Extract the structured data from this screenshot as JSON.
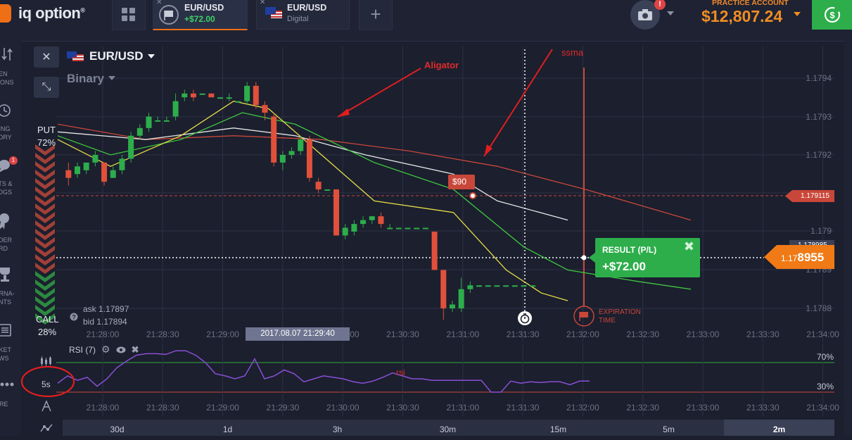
{
  "header": {
    "logo_text": "iq option",
    "logo_reg": "®",
    "tabs": [
      {
        "name": "EUR/USD",
        "sub": "+$72.00",
        "sub_color": "#3fd166"
      },
      {
        "name": "EUR/USD",
        "sub": "Digital",
        "sub_color": "#8b91a3"
      }
    ],
    "add_tab": "+",
    "camera_badge": "!",
    "account_label": "PRACTICE ACCOUNT",
    "balance": "$12,807.24"
  },
  "sidebar": [
    {
      "icon": "open-options-icon",
      "label1": "PEN",
      "label2": "TIONS"
    },
    {
      "icon": "trading-history-icon",
      "label1": "DING",
      "label2": "TORY"
    },
    {
      "icon": "chats-icon",
      "label1": "ATS &",
      "label2": "LOGS",
      "badge": "1"
    },
    {
      "icon": "leader-board-icon",
      "label1": "ADER",
      "label2": "ARD"
    },
    {
      "icon": "tournaments-icon",
      "label1": "URNA-",
      "label2": "ENTS"
    },
    {
      "icon": "market-news-icon",
      "label1": "RKET",
      "label2": "EWS"
    },
    {
      "icon": "more-icon",
      "label1": "ORE",
      "label2": ""
    }
  ],
  "chart_header": {
    "pair": "EUR/USD",
    "type": "Binary",
    "close": "✕",
    "expand": "⤡"
  },
  "indicator": {
    "put_label": "PUT",
    "put_pct": "72%",
    "call_label": "CALL",
    "call_pct": "28%"
  },
  "quote": {
    "ask": "ask 1.17897",
    "bid": "bid 1.17894"
  },
  "trade": {
    "investment": "$90",
    "result_label": "RESULT (P/L)",
    "result_value": "+$72.00",
    "strike_tag": "1.179115",
    "current_small": "1.178985",
    "current_big_a": "1.17",
    "current_big_b": "8955",
    "expiration_label_1": "EXPIRATION",
    "expiration_label_2": "TIME"
  },
  "time_tooltip": "2017.08.07 21:29:40",
  "annotations": {
    "aligator": "Aligator",
    "ssma": "ssma",
    "rsi": "rsi"
  },
  "rsi_panel": {
    "title": "RSI (7)",
    "level_70": "70%",
    "level_30": "30%",
    "chart_interval": "5s"
  },
  "timeframes": [
    "30d",
    "1d",
    "3h",
    "30m",
    "15m",
    "5m",
    "2m"
  ],
  "active_timeframe": "2m",
  "chart_data": {
    "type": "line",
    "y_ticks": [
      "1.1794",
      "1.1793",
      "1.1792",
      "1.179",
      "1.1789",
      "1.1788"
    ],
    "x_ticks": [
      "21:28:00",
      "21:28:30",
      "21:29:00",
      "21:29:30",
      "21:30:00",
      "21:30:30",
      "21:31:00",
      "21:31:30",
      "21:32:00",
      "21:32:30",
      "21:33:00",
      "21:33:30",
      "21:34:00"
    ],
    "rsi_x_ticks": [
      "21:28:00",
      "21:28:30",
      "21:29:00",
      "21:29:30",
      "21:30:00",
      "21:30:30",
      "21:31:00",
      "21:31:30",
      "21:32:00",
      "21:32:30",
      "21:33:00",
      "21:33:30",
      "21:34:00"
    ],
    "candles": [
      {
        "t": 0,
        "o": 1.17916,
        "c": 1.17914,
        "h": 1.17918,
        "l": 1.17912
      },
      {
        "t": 1,
        "o": 1.17915,
        "c": 1.17917,
        "h": 1.17918,
        "l": 1.17914
      },
      {
        "t": 2,
        "o": 1.17916,
        "c": 1.17918,
        "h": 1.17918,
        "l": 1.17915
      },
      {
        "t": 3,
        "o": 1.17918,
        "c": 1.1792,
        "h": 1.17921,
        "l": 1.17917
      },
      {
        "t": 4,
        "o": 1.17918,
        "c": 1.17913,
        "h": 1.17918,
        "l": 1.17912
      },
      {
        "t": 5,
        "o": 1.17914,
        "c": 1.17916,
        "h": 1.17917,
        "l": 1.17914
      },
      {
        "t": 6,
        "o": 1.17916,
        "c": 1.17919,
        "h": 1.1792,
        "l": 1.17915
      },
      {
        "t": 7,
        "o": 1.17919,
        "c": 1.17925,
        "h": 1.17926,
        "l": 1.17918
      },
      {
        "t": 8,
        "o": 1.17925,
        "c": 1.17927,
        "h": 1.17928,
        "l": 1.17924
      },
      {
        "t": 9,
        "o": 1.17927,
        "c": 1.1793,
        "h": 1.17931,
        "l": 1.17926
      },
      {
        "t": 10,
        "o": 1.17929,
        "c": 1.17929,
        "h": 1.1793,
        "l": 1.17929
      },
      {
        "t": 11,
        "o": 1.17929,
        "c": 1.17929,
        "h": 1.1793,
        "l": 1.17929
      },
      {
        "t": 12,
        "o": 1.1793,
        "c": 1.17934,
        "h": 1.17936,
        "l": 1.17929
      },
      {
        "t": 13,
        "o": 1.17935,
        "c": 1.17936,
        "h": 1.17937,
        "l": 1.17934
      },
      {
        "t": 14,
        "o": 1.17936,
        "c": 1.17935,
        "h": 1.17937,
        "l": 1.17934
      },
      {
        "t": 15,
        "o": 1.17936,
        "c": 1.17936,
        "h": 1.17936,
        "l": 1.17936
      },
      {
        "t": 16,
        "o": 1.17936,
        "c": 1.17935,
        "h": 1.17936,
        "l": 1.17935
      },
      {
        "t": 17,
        "o": 1.17935,
        "c": 1.17935,
        "h": 1.17935,
        "l": 1.17935
      },
      {
        "t": 18,
        "o": 1.17935,
        "c": 1.17935,
        "h": 1.17936,
        "l": 1.17934
      },
      {
        "t": 19,
        "o": 1.17934,
        "c": 1.17934,
        "h": 1.17934,
        "l": 1.17934
      },
      {
        "t": 20,
        "o": 1.17934,
        "c": 1.17938,
        "h": 1.17939,
        "l": 1.17933
      },
      {
        "t": 21,
        "o": 1.17938,
        "c": 1.17933,
        "h": 1.17939,
        "l": 1.17932
      },
      {
        "t": 22,
        "o": 1.17933,
        "c": 1.17931,
        "h": 1.17934,
        "l": 1.17929
      },
      {
        "t": 23,
        "o": 1.1793,
        "c": 1.17918,
        "h": 1.17931,
        "l": 1.17917
      },
      {
        "t": 24,
        "o": 1.17918,
        "c": 1.1792,
        "h": 1.17921,
        "l": 1.17916
      },
      {
        "t": 25,
        "o": 1.1792,
        "c": 1.17921,
        "h": 1.17922,
        "l": 1.17919
      },
      {
        "t": 26,
        "o": 1.17921,
        "c": 1.17924,
        "h": 1.17925,
        "l": 1.1792
      },
      {
        "t": 27,
        "o": 1.17924,
        "c": 1.17914,
        "h": 1.17925,
        "l": 1.17913
      },
      {
        "t": 28,
        "o": 1.17913,
        "c": 1.17911,
        "h": 1.17914,
        "l": 1.1791
      },
      {
        "t": 29,
        "o": 1.17911,
        "c": 1.17911,
        "h": 1.17911,
        "l": 1.17911
      },
      {
        "t": 30,
        "o": 1.17911,
        "c": 1.17899,
        "h": 1.17911,
        "l": 1.17899
      },
      {
        "t": 31,
        "o": 1.17899,
        "c": 1.17901,
        "h": 1.17902,
        "l": 1.17898
      },
      {
        "t": 32,
        "o": 1.179,
        "c": 1.17902,
        "h": 1.17903,
        "l": 1.17899
      },
      {
        "t": 33,
        "o": 1.17902,
        "c": 1.17903,
        "h": 1.17904,
        "l": 1.17901
      },
      {
        "t": 34,
        "o": 1.17903,
        "c": 1.17904,
        "h": 1.17904,
        "l": 1.17902
      },
      {
        "t": 35,
        "o": 1.17904,
        "c": 1.17902,
        "h": 1.17905,
        "l": 1.17901
      },
      {
        "t": 36,
        "o": 1.17901,
        "c": 1.17901,
        "h": 1.17902,
        "l": 1.17901
      },
      {
        "t": 37,
        "o": 1.17901,
        "c": 1.17901,
        "h": 1.17901,
        "l": 1.17901
      },
      {
        "t": 38,
        "o": 1.17901,
        "c": 1.17901,
        "h": 1.17901,
        "l": 1.17901
      },
      {
        "t": 39,
        "o": 1.17901,
        "c": 1.17901,
        "h": 1.17901,
        "l": 1.17901
      },
      {
        "t": 40,
        "o": 1.17901,
        "c": 1.17901,
        "h": 1.17901,
        "l": 1.17901
      },
      {
        "t": 41,
        "o": 1.179,
        "c": 1.1789,
        "h": 1.179,
        "l": 1.1789
      },
      {
        "t": 42,
        "o": 1.1789,
        "c": 1.1788,
        "h": 1.1789,
        "l": 1.17877
      },
      {
        "t": 43,
        "o": 1.1788,
        "c": 1.17881,
        "h": 1.17882,
        "l": 1.17879
      },
      {
        "t": 44,
        "o": 1.1788,
        "c": 1.17885,
        "h": 1.17888,
        "l": 1.17879
      },
      {
        "t": 45,
        "o": 1.17885,
        "c": 1.17886,
        "h": 1.17887,
        "l": 1.17884
      },
      {
        "t": 46,
        "o": 1.17886,
        "c": 1.17886,
        "h": 1.17886,
        "l": 1.17886
      },
      {
        "t": 47,
        "o": 1.17886,
        "c": 1.17886,
        "h": 1.17886,
        "l": 1.17886
      },
      {
        "t": 48,
        "o": 1.17886,
        "c": 1.17886,
        "h": 1.17886,
        "l": 1.17886
      },
      {
        "t": 49,
        "o": 1.17886,
        "c": 1.17886,
        "h": 1.17886,
        "l": 1.17886
      },
      {
        "t": 50,
        "o": 1.17886,
        "c": 1.17886,
        "h": 1.17886,
        "l": 1.17886
      },
      {
        "t": 51,
        "o": 1.17886,
        "c": 1.17886,
        "h": 1.17886,
        "l": 1.17886
      },
      {
        "t": 52,
        "o": 1.17886,
        "c": 1.17886,
        "h": 1.17886,
        "l": 1.17886
      }
    ],
    "series": [
      {
        "name": "",
        "color": "#c9473a",
        "points": [
          [
            0,
            1.17928
          ],
          [
            10,
            1.17924
          ],
          [
            20,
            1.17925
          ],
          [
            30,
            1.17924
          ],
          [
            40,
            1.17921
          ],
          [
            50,
            1.17917
          ],
          [
            60,
            1.17911
          ],
          [
            72,
            1.17903
          ]
        ]
      },
      {
        "name": "",
        "color": "#e6e6e6",
        "points": [
          [
            0,
            1.17926
          ],
          [
            10,
            1.17924
          ],
          [
            20,
            1.17927
          ],
          [
            27,
            1.17925
          ],
          [
            35,
            1.1792
          ],
          [
            45,
            1.17915
          ],
          [
            50,
            1.17908
          ],
          [
            58,
            1.17903
          ]
        ]
      },
      {
        "name": "",
        "color": "#3fc63f",
        "points": [
          [
            0,
            1.17925
          ],
          [
            6,
            1.1792
          ],
          [
            14,
            1.17924
          ],
          [
            21,
            1.17931
          ],
          [
            27,
            1.17928
          ],
          [
            36,
            1.17918
          ],
          [
            45,
            1.17911
          ],
          [
            53,
            1.17896
          ],
          [
            58,
            1.1789
          ],
          [
            66,
            1.17887
          ],
          [
            72,
            1.17885
          ]
        ]
      },
      {
        "name": "",
        "color": "#e8dd48",
        "points": [
          [
            0,
            1.17924
          ],
          [
            6,
            1.17917
          ],
          [
            14,
            1.17925
          ],
          [
            20,
            1.17934
          ],
          [
            24,
            1.17932
          ],
          [
            30,
            1.1792
          ],
          [
            36,
            1.17908
          ],
          [
            45,
            1.17905
          ],
          [
            51,
            1.1789
          ],
          [
            55,
            1.17884
          ],
          [
            58,
            1.17882
          ]
        ]
      }
    ],
    "rsi": [
      42,
      52,
      46,
      50,
      38,
      48,
      63,
      72,
      80,
      82,
      82,
      81,
      86,
      86,
      80,
      70,
      55,
      52,
      48,
      52,
      75,
      48,
      52,
      60,
      55,
      44,
      48,
      52,
      50,
      48,
      44,
      42,
      45,
      50,
      56,
      52,
      48,
      48,
      46,
      46,
      46,
      46,
      46,
      46,
      30,
      30,
      45,
      42,
      44,
      43,
      44,
      44,
      40,
      45,
      45
    ],
    "rsi_levels": [
      70,
      30
    ],
    "strike": 1.179115,
    "current": 1.178955
  }
}
